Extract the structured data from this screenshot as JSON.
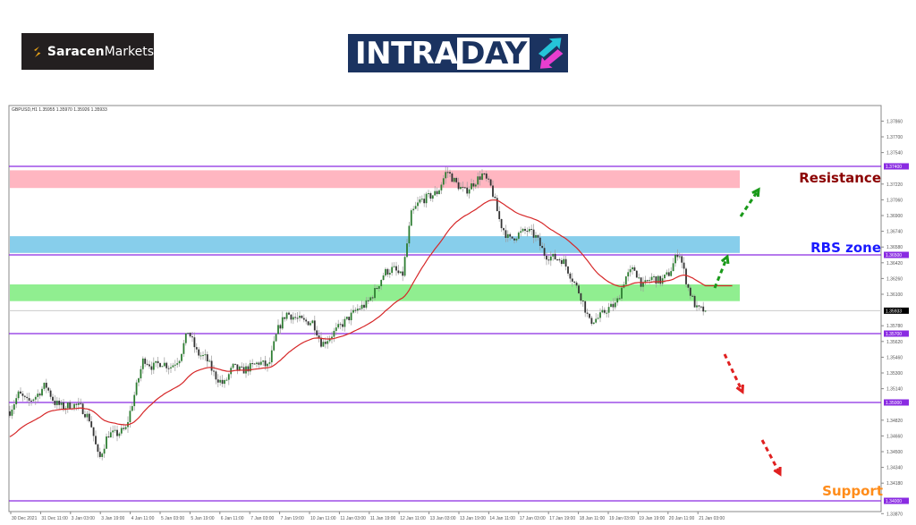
{
  "branding": {
    "broker_logo": "SaracenMarkets",
    "broker_logo_bold": "Saracen",
    "broker_logo_rest": "Markets",
    "product_logo_a": "INTRA",
    "product_logo_b": "DAY"
  },
  "colors": {
    "bull": "#2e7d32",
    "bear": "#333333",
    "ma": "#d62728",
    "level_line": "#8a2be2",
    "resistance_zone": "#ffb6c1",
    "rbs_zone": "#87ceeb",
    "support_zone": "#90ee90",
    "resistance_label": "#8b0000",
    "rbs_label": "#1a1aff",
    "support_label": "#ff8c1a",
    "up_arrow": "#1a9a1a",
    "down_arrow": "#e02020"
  },
  "chart_data": {
    "type": "candlestick",
    "symbol_header": "GBPUSD,H1  1.35955 1.35970 1.35926 1.35933",
    "ylim": [
      1.3387,
      1.38
    ],
    "grid": false,
    "x_tick_labels": [
      "30 Dec 2021",
      "31 Dec 11:00",
      "3 Jan 03:00",
      "3 Jan 19:00",
      "4 Jan 11:00",
      "5 Jan 03:00",
      "5 Jan 19:00",
      "6 Jan 11:00",
      "7 Jan 03:00",
      "7 Jan 19:00",
      "10 Jan 11:00",
      "11 Jan 03:00",
      "11 Jan 19:00",
      "12 Jan 11:00",
      "13 Jan 03:00",
      "13 Jan 19:00",
      "14 Jan 11:00",
      "17 Jan 03:00",
      "17 Jan 19:00",
      "18 Jan 11:00",
      "19 Jan 03:00",
      "19 Jan 19:00",
      "20 Jan 11:00",
      "21 Jan 03:00"
    ],
    "y_tick_labels": [
      "1.37860",
      "1.37700",
      "1.37540",
      "1.37220",
      "1.37060",
      "1.36900",
      "1.36740",
      "1.36580",
      "1.36420",
      "1.36260",
      "1.36100",
      "1.35780",
      "1.35620",
      "1.35460",
      "1.35300",
      "1.35140",
      "1.34820",
      "1.34660",
      "1.34500",
      "1.34340",
      "1.34180",
      "1.33870"
    ],
    "close_path": [
      1.3491,
      1.3509,
      1.35,
      1.3507,
      1.3518,
      1.35,
      1.3495,
      1.3498,
      1.3495,
      1.3482,
      1.3441,
      1.3468,
      1.3468,
      1.3473,
      1.3509,
      1.3545,
      1.3536,
      1.3541,
      1.3536,
      1.3545,
      1.3573,
      1.355,
      1.3545,
      1.3527,
      1.3518,
      1.3536,
      1.3532,
      1.3536,
      1.3541,
      1.3536,
      1.3573,
      1.3591,
      1.3586,
      1.3582,
      1.3582,
      1.3559,
      1.3568,
      1.3577,
      1.3586,
      1.3595,
      1.36,
      1.3614,
      1.3632,
      1.3636,
      1.3627,
      1.3691,
      1.3705,
      1.3709,
      1.3714,
      1.3736,
      1.3723,
      1.3714,
      1.3723,
      1.3732,
      1.3718,
      1.3682,
      1.3665,
      1.3671,
      1.3675,
      1.3668,
      1.365,
      1.3647,
      1.3645,
      1.3627,
      1.3609,
      1.3582,
      1.3586,
      1.3595,
      1.36,
      1.3627,
      1.3636,
      1.3618,
      1.3627,
      1.3623,
      1.3632,
      1.3655,
      1.3618,
      1.3595,
      1.35933
    ],
    "current_price": "1.35933",
    "levels": [
      {
        "label": "1.37400",
        "price": 1.374
      },
      {
        "label": "1.36500",
        "price": 1.365
      },
      {
        "label": "1.35700",
        "price": 1.357
      },
      {
        "label": "1.35000",
        "price": 1.35
      },
      {
        "label": "1.34000",
        "price": 1.34
      }
    ],
    "zones": [
      {
        "name": "resistance",
        "from": 1.3718,
        "to": 1.3736
      },
      {
        "name": "rbs",
        "from": 1.3652,
        "to": 1.3669
      },
      {
        "name": "support-green",
        "from": 1.3603,
        "to": 1.362
      }
    ],
    "annotations": {
      "resistance": "Resistance",
      "rbs": "RBS zone",
      "support": "Support"
    }
  }
}
